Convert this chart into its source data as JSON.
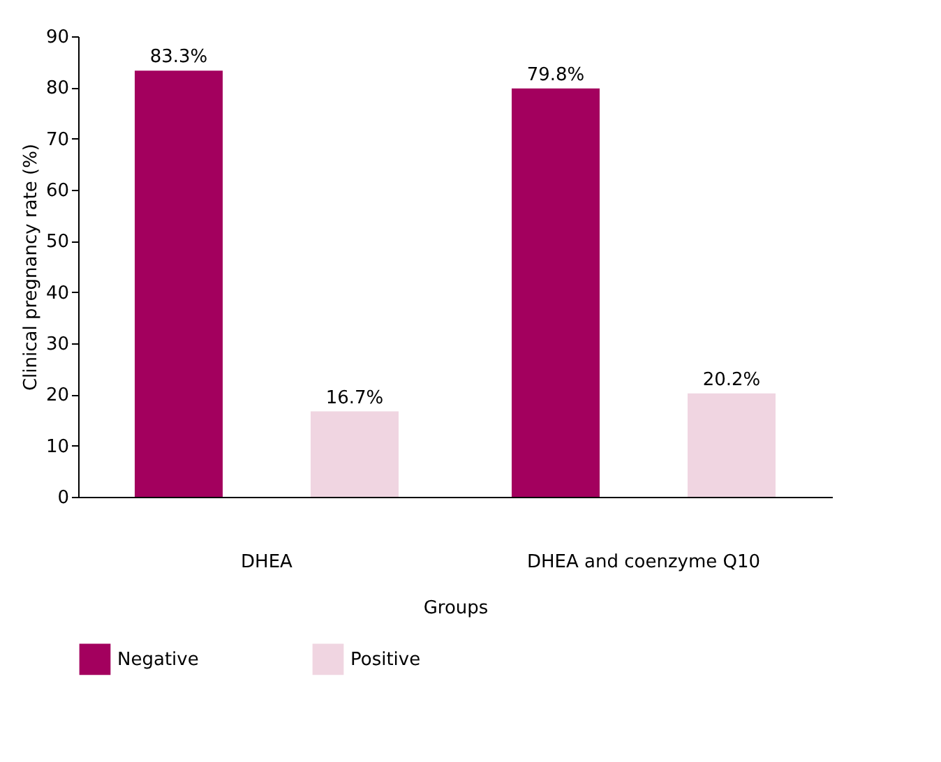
{
  "chart_data": {
    "type": "bar",
    "xlabel": "Groups",
    "ylabel": "Clinical pregnancy rate (%)",
    "categories": [
      "DHEA",
      "DHEA and coenzyme Q10"
    ],
    "series": [
      {
        "name": "Negative",
        "color": "#a3005e",
        "values": [
          83.3,
          79.8
        ],
        "value_labels": [
          "83.3%",
          "79.8%"
        ]
      },
      {
        "name": "Positive",
        "color": "#f0d5e1",
        "values": [
          16.7,
          20.2
        ],
        "value_labels": [
          "16.7%",
          "20.2%"
        ]
      }
    ],
    "ylim": [
      0,
      90
    ],
    "yticks": [
      0,
      10,
      20,
      30,
      40,
      50,
      60,
      70,
      80,
      90
    ],
    "grid": false,
    "legend": "bottom"
  }
}
